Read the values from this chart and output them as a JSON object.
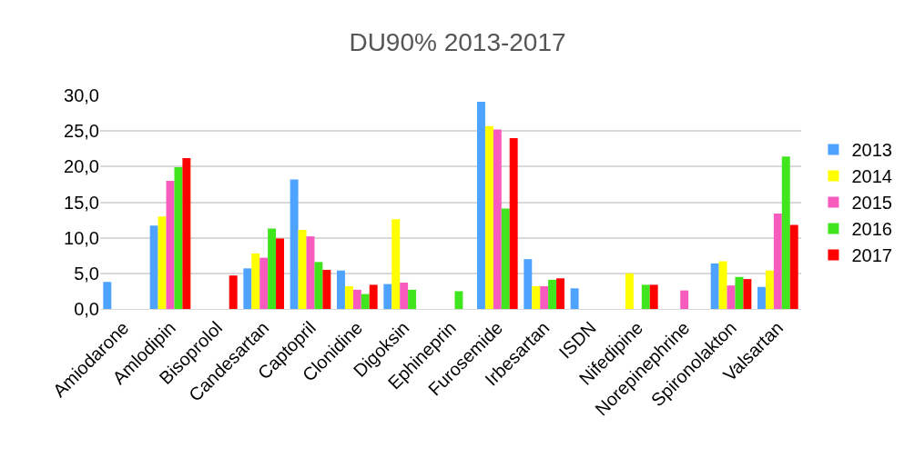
{
  "chart_data": {
    "type": "bar",
    "title": "DU90% 2013-2017",
    "categories": [
      "Amiodarone",
      "Amlodipin",
      "Bisoprolol",
      "Candesartan",
      "Captopril",
      "Clonidine",
      "Digoksin",
      "Ephineprin",
      "Furosemide",
      "Irbesartan",
      "ISDN",
      "Nifedipine",
      "Norepinephrine",
      "Spironolakton",
      "Valsartan"
    ],
    "series": [
      {
        "name": "2013",
        "color": "#4da3ff",
        "values": [
          3.8,
          11.7,
          null,
          5.7,
          18.2,
          5.4,
          3.5,
          null,
          29.1,
          7.0,
          2.9,
          null,
          null,
          6.4,
          3.1
        ]
      },
      {
        "name": "2014",
        "color": "#ffff00",
        "values": [
          null,
          13.0,
          null,
          7.8,
          11.1,
          3.2,
          12.6,
          null,
          25.7,
          3.2,
          null,
          5.0,
          null,
          6.7,
          5.4
        ]
      },
      {
        "name": "2015",
        "color": "#f65bbd",
        "values": [
          null,
          18.0,
          null,
          7.2,
          10.2,
          2.7,
          3.7,
          null,
          25.2,
          3.2,
          null,
          null,
          2.6,
          3.3,
          13.4
        ]
      },
      {
        "name": "2016",
        "color": "#41e51d",
        "values": [
          null,
          19.9,
          null,
          11.3,
          6.6,
          2.1,
          2.7,
          2.5,
          14.1,
          4.1,
          null,
          3.4,
          null,
          4.5,
          21.4
        ]
      },
      {
        "name": "2017",
        "color": "#ff0000",
        "values": [
          null,
          21.2,
          4.7,
          9.9,
          5.5,
          3.4,
          null,
          null,
          24.0,
          4.3,
          null,
          3.4,
          null,
          4.2,
          11.8
        ]
      }
    ],
    "ylim": [
      0,
      30
    ],
    "yticks": [
      {
        "value": 0,
        "label": "0,0"
      },
      {
        "value": 5,
        "label": "5,0"
      },
      {
        "value": 10,
        "label": "10,0"
      },
      {
        "value": 15,
        "label": "15,0"
      },
      {
        "value": 20,
        "label": "20,0"
      },
      {
        "value": 25,
        "label": "25,0"
      },
      {
        "value": 30,
        "label": "30,0"
      }
    ],
    "grid": "y",
    "legend": "right"
  }
}
